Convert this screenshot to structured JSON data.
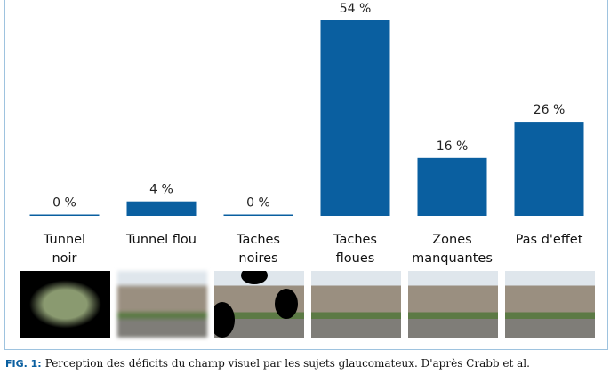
{
  "chart_data": {
    "type": "bar",
    "categories": [
      "Tunnel\nnoir",
      "Tunnel flou",
      "Taches\nnoires",
      "Taches\nfloues",
      "Zones\nmanquantes",
      "Pas d'effet"
    ],
    "values": [
      0,
      4,
      0,
      54,
      16,
      26
    ],
    "value_labels": [
      "0 %",
      "4 %",
      "0 %",
      "54 %",
      "16 %",
      "26 %"
    ],
    "color": "#0a5fa0"
  },
  "caption": {
    "label": "FIG. 1:",
    "text": "Perception des déficits du champ visuel par les sujets glaucomateux. D'après Crabb et al."
  }
}
